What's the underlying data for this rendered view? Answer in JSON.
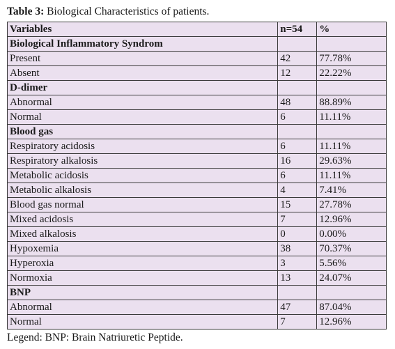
{
  "caption": {
    "label": "Table 3:",
    "text": "Biological Characteristics of patients."
  },
  "table": {
    "headers": [
      "Variables",
      "n=54",
      "%"
    ],
    "rows": [
      {
        "section": true,
        "label": "Biological Inflammatory Syndrom",
        "n": "",
        "pct": ""
      },
      {
        "label": "Present",
        "n": "42",
        "pct": "77.78%"
      },
      {
        "label": "Absent",
        "n": "12",
        "pct": "22.22%"
      },
      {
        "section": true,
        "label": "D-dimer",
        "n": "",
        "pct": ""
      },
      {
        "label": "Abnormal",
        "n": "48",
        "pct": "88.89%"
      },
      {
        "label": "Normal",
        "n": "6",
        "pct": "11.11%"
      },
      {
        "section": true,
        "label": "Blood gas",
        "n": "",
        "pct": ""
      },
      {
        "label": "Respiratory acidosis",
        "n": "6",
        "pct": "11.11%"
      },
      {
        "label": "Respiratory alkalosis",
        "n": "16",
        "pct": "29.63%"
      },
      {
        "label": "Metabolic acidosis",
        "n": "6",
        "pct": "11.11%"
      },
      {
        "label": "Metabolic alkalosis",
        "n": "4",
        "pct": "7.41%"
      },
      {
        "label": "Blood gas normal",
        "n": "15",
        "pct": "27.78%"
      },
      {
        "label": "Mixed acidosis",
        "n": "7",
        "pct": "12.96%"
      },
      {
        "label": "Mixed alkalosis",
        "n": "0",
        "pct": "0.00%"
      },
      {
        "label": "Hypoxemia",
        "n": "38",
        "pct": "70.37%"
      },
      {
        "label": "Hyperoxia",
        "n": "3",
        "pct": "5.56%"
      },
      {
        "label": "Normoxia",
        "n": "13",
        "pct": "24.07%"
      },
      {
        "section": true,
        "label": "BNP",
        "n": "",
        "pct": ""
      },
      {
        "label": "Abnormal",
        "n": "47",
        "pct": "87.04%"
      },
      {
        "label": "Normal",
        "n": "7",
        "pct": "12.96%"
      }
    ]
  },
  "legend": "Legend: BNP: Brain Natriuretic Peptide.",
  "colors": {
    "table_fill": "#ebe0ef",
    "border": "#3a3a3a"
  }
}
